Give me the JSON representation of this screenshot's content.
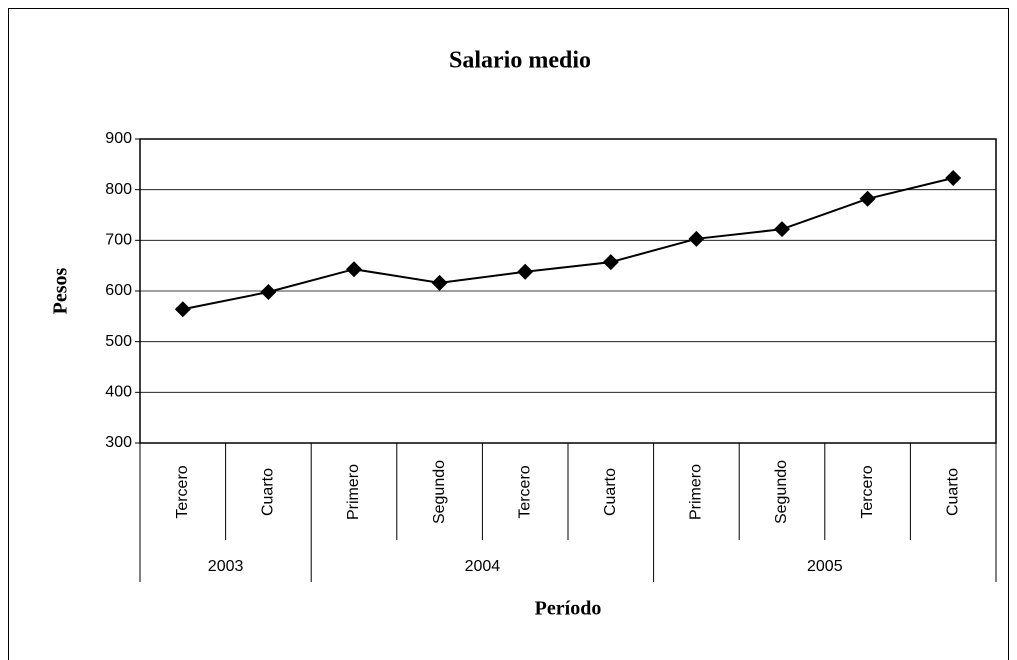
{
  "chart_data": {
    "type": "line",
    "title": "Salario medio",
    "x_label": "Período",
    "y_label": "Pesos",
    "groups": [
      {
        "name": "2003",
        "categories": [
          "Tercero",
          "Cuarto"
        ]
      },
      {
        "name": "2004",
        "categories": [
          "Primero",
          "Segundo",
          "Tercero",
          "Cuarto"
        ]
      },
      {
        "name": "2005",
        "categories": [
          "Primero",
          "Segundo",
          "Tercero",
          "Cuarto"
        ]
      }
    ],
    "values": [
      564,
      598,
      643,
      616,
      638,
      657,
      703,
      722,
      782,
      823
    ],
    "color": "#000000",
    "ylim": [
      300,
      900
    ],
    "yticks": [
      300,
      400,
      500,
      600,
      700,
      800,
      900
    ],
    "grid": true
  }
}
